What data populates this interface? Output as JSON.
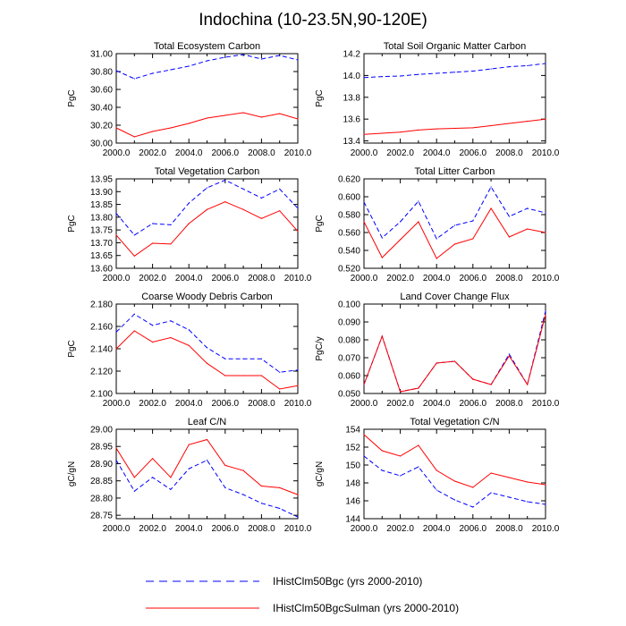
{
  "figure_title": "Indochina (10-23.5N,90-120E)",
  "colors": {
    "bgc": "#0000ff",
    "sulman": "#ff0000",
    "axis": "#000000"
  },
  "legend": [
    {
      "label": "IHistClm50Bgc (yrs 2000-2010)",
      "color": "#0000ff",
      "style": "dashed"
    },
    {
      "label": "IHistClm50BgcSulman (yrs 2000-2010)",
      "color": "#ff0000",
      "style": "solid"
    }
  ],
  "chart_data": [
    {
      "type": "line",
      "title": "Total Ecosystem Carbon",
      "ylabel": "PgC",
      "x": [
        2000,
        2001,
        2002,
        2003,
        2004,
        2005,
        2006,
        2007,
        2008,
        2009,
        2010
      ],
      "xticks": [
        2000,
        2002,
        2004,
        2006,
        2008,
        2010
      ],
      "xtick_labels": [
        "2000.0",
        "2002.0",
        "2004.0",
        "2006.0",
        "2008.0",
        "2010.0"
      ],
      "ylim": [
        30.0,
        31.0
      ],
      "yticks": [
        30.0,
        30.2,
        30.4,
        30.6,
        30.8,
        31.0
      ],
      "ytick_labels": [
        "30.00",
        "30.20",
        "30.40",
        "30.60",
        "30.80",
        "31.00"
      ],
      "series": [
        {
          "values": [
            30.81,
            30.72,
            30.78,
            30.82,
            30.86,
            30.92,
            30.96,
            30.99,
            30.94,
            30.98,
            30.93
          ],
          "color": "#0000ff",
          "style": "dashed"
        },
        {
          "values": [
            30.17,
            30.07,
            30.13,
            30.17,
            30.22,
            30.28,
            30.31,
            30.34,
            30.29,
            30.33,
            30.27
          ],
          "color": "#ff0000",
          "style": "solid"
        }
      ]
    },
    {
      "type": "line",
      "title": "Total Soil Organic Matter Carbon",
      "ylabel": "PgC",
      "x": [
        2000,
        2001,
        2002,
        2003,
        2004,
        2005,
        2006,
        2007,
        2008,
        2009,
        2010
      ],
      "xticks": [
        2000,
        2002,
        2004,
        2006,
        2008,
        2010
      ],
      "xtick_labels": [
        "2000.0",
        "2002.0",
        "2004.0",
        "2006.0",
        "2008.0",
        "2010.0"
      ],
      "ylim": [
        13.38,
        14.2
      ],
      "yticks": [
        13.4,
        13.6,
        13.8,
        14.0,
        14.2
      ],
      "ytick_labels": [
        "13.4",
        "13.6",
        "13.8",
        "14.0",
        "14.2"
      ],
      "series": [
        {
          "values": [
            13.98,
            13.99,
            13.995,
            14.01,
            14.02,
            14.03,
            14.04,
            14.06,
            14.08,
            14.09,
            14.11
          ],
          "color": "#0000ff",
          "style": "dashed"
        },
        {
          "values": [
            13.46,
            13.47,
            13.48,
            13.5,
            13.51,
            13.515,
            13.52,
            13.54,
            13.56,
            13.58,
            13.6
          ],
          "color": "#ff0000",
          "style": "solid"
        }
      ]
    },
    {
      "type": "line",
      "title": "Total Vegetation Carbon",
      "ylabel": "PgC",
      "x": [
        2000,
        2001,
        2002,
        2003,
        2004,
        2005,
        2006,
        2007,
        2008,
        2009,
        2010
      ],
      "xticks": [
        2000,
        2002,
        2004,
        2006,
        2008,
        2010
      ],
      "xtick_labels": [
        "2000.0",
        "2002.0",
        "2004.0",
        "2006.0",
        "2008.0",
        "2010.0"
      ],
      "ylim": [
        13.6,
        13.95
      ],
      "yticks": [
        13.6,
        13.65,
        13.7,
        13.75,
        13.8,
        13.85,
        13.9,
        13.95
      ],
      "ytick_labels": [
        "13.60",
        "13.65",
        "13.70",
        "13.75",
        "13.80",
        "13.85",
        "13.90",
        "13.95"
      ],
      "series": [
        {
          "values": [
            13.815,
            13.73,
            13.775,
            13.77,
            13.855,
            13.915,
            13.945,
            13.91,
            13.875,
            13.91,
            13.835
          ],
          "color": "#0000ff",
          "style": "dashed"
        },
        {
          "values": [
            13.73,
            13.648,
            13.698,
            13.695,
            13.775,
            13.83,
            13.86,
            13.83,
            13.795,
            13.825,
            13.745
          ],
          "color": "#ff0000",
          "style": "solid"
        }
      ]
    },
    {
      "type": "line",
      "title": "Total Litter Carbon",
      "ylabel": "PgC",
      "x": [
        2000,
        2001,
        2002,
        2003,
        2004,
        2005,
        2006,
        2007,
        2008,
        2009,
        2010
      ],
      "xticks": [
        2000,
        2002,
        2004,
        2006,
        2008,
        2010
      ],
      "xtick_labels": [
        "2000.0",
        "2002.0",
        "2004.0",
        "2006.0",
        "2008.0",
        "2010.0"
      ],
      "ylim": [
        0.52,
        0.62
      ],
      "yticks": [
        0.52,
        0.54,
        0.56,
        0.58,
        0.6,
        0.62
      ],
      "ytick_labels": [
        "0.520",
        "0.540",
        "0.560",
        "0.580",
        "0.600",
        "0.620"
      ],
      "series": [
        {
          "values": [
            0.594,
            0.554,
            0.572,
            0.595,
            0.553,
            0.568,
            0.573,
            0.611,
            0.578,
            0.587,
            0.582
          ],
          "color": "#0000ff",
          "style": "dashed"
        },
        {
          "values": [
            0.572,
            0.532,
            0.552,
            0.572,
            0.531,
            0.547,
            0.553,
            0.587,
            0.555,
            0.564,
            0.56
          ],
          "color": "#ff0000",
          "style": "solid"
        }
      ]
    },
    {
      "type": "line",
      "title": "Coarse Woody Debris Carbon",
      "ylabel": "PgC",
      "x": [
        2000,
        2001,
        2002,
        2003,
        2004,
        2005,
        2006,
        2007,
        2008,
        2009,
        2010
      ],
      "xticks": [
        2000,
        2002,
        2004,
        2006,
        2008,
        2010
      ],
      "xtick_labels": [
        "2000.0",
        "2002.0",
        "2004.0",
        "2006.0",
        "2008.0",
        "2010.0"
      ],
      "ylim": [
        2.1,
        2.18
      ],
      "yticks": [
        2.1,
        2.12,
        2.14,
        2.16,
        2.18
      ],
      "ytick_labels": [
        "2.100",
        "2.120",
        "2.140",
        "2.160",
        "2.180"
      ],
      "series": [
        {
          "values": [
            2.155,
            2.171,
            2.161,
            2.165,
            2.157,
            2.141,
            2.131,
            2.131,
            2.131,
            2.119,
            2.121
          ],
          "color": "#0000ff",
          "style": "dashed"
        },
        {
          "values": [
            2.14,
            2.156,
            2.146,
            2.15,
            2.143,
            2.127,
            2.116,
            2.116,
            2.116,
            2.104,
            2.107
          ],
          "color": "#ff0000",
          "style": "solid"
        }
      ]
    },
    {
      "type": "line",
      "title": "Land Cover Change Flux",
      "ylabel": "PgC/y",
      "x": [
        2000,
        2001,
        2002,
        2003,
        2004,
        2005,
        2006,
        2007,
        2008,
        2009,
        2010
      ],
      "xticks": [
        2000,
        2002,
        2004,
        2006,
        2008,
        2010
      ],
      "xtick_labels": [
        "2000.0",
        "2002.0",
        "2004.0",
        "2006.0",
        "2008.0",
        "2010.0"
      ],
      "ylim": [
        0.05,
        0.1
      ],
      "yticks": [
        0.05,
        0.06,
        0.07,
        0.08,
        0.09,
        0.1
      ],
      "ytick_labels": [
        "0.050",
        "0.060",
        "0.070",
        "0.080",
        "0.090",
        "0.100"
      ],
      "series": [
        {
          "values": [
            0.055,
            0.082,
            0.051,
            0.053,
            0.067,
            0.068,
            0.058,
            0.055,
            0.072,
            0.055,
            0.096
          ],
          "color": "#0000ff",
          "style": "dashed"
        },
        {
          "values": [
            0.055,
            0.082,
            0.051,
            0.053,
            0.067,
            0.068,
            0.058,
            0.055,
            0.071,
            0.055,
            0.094
          ],
          "color": "#ff0000",
          "style": "solid"
        }
      ]
    },
    {
      "type": "line",
      "title": "Leaf C/N",
      "ylabel": "gC/gN",
      "x": [
        2000,
        2001,
        2002,
        2003,
        2004,
        2005,
        2006,
        2007,
        2008,
        2009,
        2010
      ],
      "xticks": [
        2000,
        2002,
        2004,
        2006,
        2008,
        2010
      ],
      "xtick_labels": [
        "2000.0",
        "2002.0",
        "2004.0",
        "2006.0",
        "2008.0",
        "2010.0"
      ],
      "ylim": [
        28.74,
        29.0
      ],
      "yticks": [
        28.75,
        28.8,
        28.85,
        28.9,
        28.95,
        29.0
      ],
      "ytick_labels": [
        "28.75",
        "28.80",
        "28.85",
        "28.90",
        "28.95",
        "29.00"
      ],
      "series": [
        {
          "values": [
            28.91,
            28.82,
            28.86,
            28.825,
            28.885,
            28.91,
            28.83,
            28.81,
            28.785,
            28.77,
            28.745
          ],
          "color": "#0000ff",
          "style": "dashed"
        },
        {
          "values": [
            28.945,
            28.86,
            28.915,
            28.86,
            28.955,
            28.97,
            28.895,
            28.88,
            28.835,
            28.83,
            28.81
          ],
          "color": "#ff0000",
          "style": "solid"
        }
      ]
    },
    {
      "type": "line",
      "title": "Total Vegetation C/N",
      "ylabel": "gC/gN",
      "x": [
        2000,
        2001,
        2002,
        2003,
        2004,
        2005,
        2006,
        2007,
        2008,
        2009,
        2010
      ],
      "xticks": [
        2000,
        2002,
        2004,
        2006,
        2008,
        2010
      ],
      "xtick_labels": [
        "2000.0",
        "2002.0",
        "2004.0",
        "2006.0",
        "2008.0",
        "2010.0"
      ],
      "ylim": [
        144,
        154
      ],
      "yticks": [
        144,
        146,
        148,
        150,
        152,
        154
      ],
      "ytick_labels": [
        "144",
        "146",
        "148",
        "150",
        "152",
        "154"
      ],
      "series": [
        {
          "values": [
            151.0,
            149.4,
            148.8,
            149.8,
            147.2,
            146.1,
            145.3,
            146.9,
            146.4,
            145.9,
            145.6
          ],
          "color": "#0000ff",
          "style": "dashed"
        },
        {
          "values": [
            153.4,
            151.6,
            151.0,
            152.2,
            149.4,
            148.2,
            147.5,
            149.1,
            148.6,
            148.1,
            147.8
          ],
          "color": "#ff0000",
          "style": "solid"
        }
      ]
    }
  ]
}
